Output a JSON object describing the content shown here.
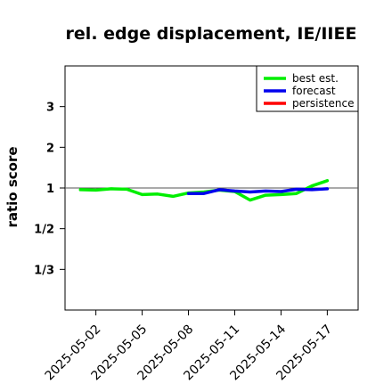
{
  "chart_data": {
    "type": "line",
    "title": "rel. edge displacement, IE/IIEE",
    "ylabel": "ratio score",
    "xlabel": "",
    "x_ticks": [
      "2025-05-02",
      "2025-05-05",
      "2025-05-08",
      "2025-05-11",
      "2025-05-14",
      "2025-05-17"
    ],
    "x_tick_colors": [
      "#000000",
      "#000000",
      "#228B22",
      "#000000",
      "#000000",
      "#000000"
    ],
    "xlim": [
      "2025-04-30",
      "2025-05-19"
    ],
    "y_ticks": [
      {
        "label": "3",
        "value": 3
      },
      {
        "label": "2",
        "value": 2
      },
      {
        "label": "1",
        "value": 1
      },
      {
        "label": "1/2",
        "value": 0.5
      },
      {
        "label": "1/3",
        "value": 0.3333
      }
    ],
    "y_scale": "reciprocal-symmetric",
    "ylim": [
      0.25,
      4
    ],
    "reference_line": 1,
    "legend_position": "top-right",
    "series": [
      {
        "name": "best est.",
        "color": "#00ee00",
        "x": [
          "2025-05-01",
          "2025-05-02",
          "2025-05-03",
          "2025-05-04",
          "2025-05-05",
          "2025-05-06",
          "2025-05-07",
          "2025-05-08",
          "2025-05-09",
          "2025-05-10",
          "2025-05-11",
          "2025-05-12",
          "2025-05-13",
          "2025-05-14",
          "2025-05-15",
          "2025-05-16",
          "2025-05-17"
        ],
        "y": [
          0.96,
          0.95,
          0.98,
          0.97,
          0.86,
          0.87,
          0.83,
          0.89,
          0.91,
          0.95,
          0.92,
          0.77,
          0.85,
          0.86,
          0.88,
          1.05,
          1.18
        ]
      },
      {
        "name": "forecast",
        "color": "#0000ee",
        "x": [
          "2025-05-08",
          "2025-05-09",
          "2025-05-10",
          "2025-05-11",
          "2025-05-12",
          "2025-05-13",
          "2025-05-14",
          "2025-05-15",
          "2025-05-16",
          "2025-05-17"
        ],
        "y": [
          0.88,
          0.88,
          0.96,
          0.93,
          0.91,
          0.93,
          0.92,
          0.97,
          0.96,
          0.98
        ]
      },
      {
        "name": "persistence",
        "color": "#ff0000",
        "x": [],
        "y": []
      }
    ]
  }
}
